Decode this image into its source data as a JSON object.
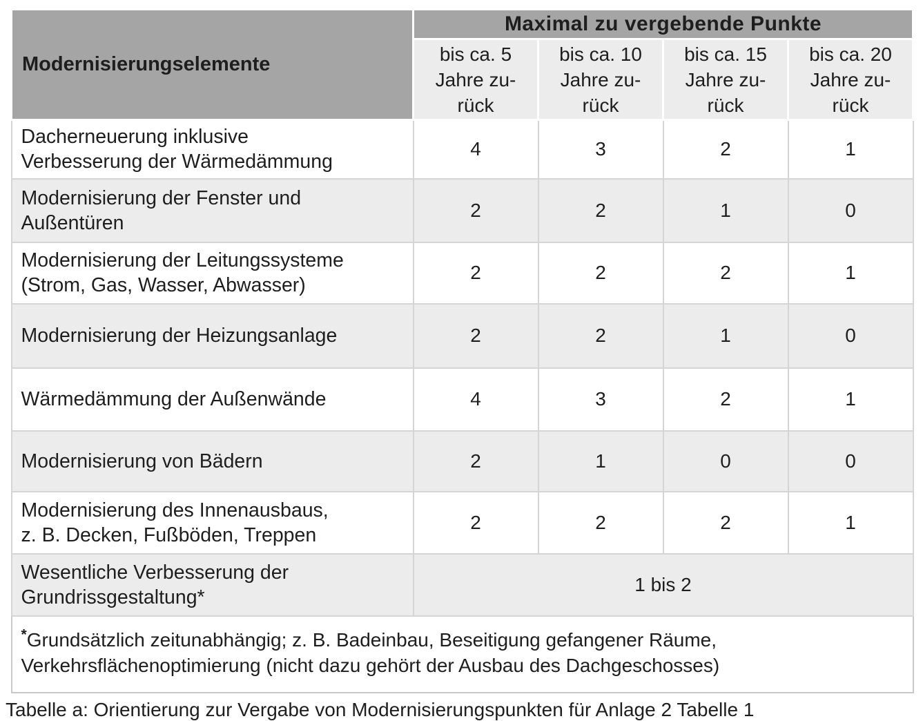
{
  "table": {
    "corner_header": "Modernisierungselemente",
    "points_header": "Maximal zu vergebende Punkte",
    "column_headers": [
      "bis ca. 5\nJahre zu-\nrück",
      "bis ca. 10\nJahre zu-\nrück",
      "bis ca. 15\nJahre zu-\nrück",
      "bis ca. 20\nJahre zu-\nrück"
    ],
    "rows": [
      {
        "label": "Dacherneuerung inklusive\nVerbesserung der Wärmedämmung",
        "values": [
          "4",
          "3",
          "2",
          "1"
        ]
      },
      {
        "label": "Modernisierung der Fenster und\nAußentüren",
        "values": [
          "2",
          "2",
          "1",
          "0"
        ]
      },
      {
        "label": "Modernisierung der Leitungssysteme\n(Strom, Gas, Wasser, Abwasser)",
        "values": [
          "2",
          "2",
          "2",
          "1"
        ]
      },
      {
        "label": "Modernisierung der Heizungsanlage",
        "values": [
          "2",
          "2",
          "1",
          "0"
        ]
      },
      {
        "label": "Wärmedämmung der Außenwände",
        "values": [
          "4",
          "3",
          "2",
          "1"
        ]
      },
      {
        "label": "Modernisierung von Bädern",
        "values": [
          "2",
          "1",
          "0",
          "0"
        ]
      },
      {
        "label": "Modernisierung des Innenausbaus,\nz. B. Decken, Fußböden, Treppen",
        "values": [
          "2",
          "2",
          "2",
          "1"
        ]
      },
      {
        "label": "Wesentliche Verbesserung der\nGrundrissgestaltung*",
        "span_value": "1 bis 2"
      }
    ],
    "footnote": {
      "marker": "*",
      "text": "Grundsätzlich zeitunabhängig; z. B. Badeinbau, Beseitigung gefangener Räume, Verkehrsflächenoptimierung (nicht dazu gehört der Ausbau des Dachgeschosses)"
    },
    "colors": {
      "header_gray": "#a5a5a5",
      "alt_row_gray": "#ececec",
      "row_white": "#ffffff",
      "grid_border": "#d5d5d5",
      "text": "#1e1e1e"
    }
  },
  "caption": "Tabelle a: Orientierung zur Vergabe von Modernisierungspunkten für Anlage 2 Tabelle 1"
}
